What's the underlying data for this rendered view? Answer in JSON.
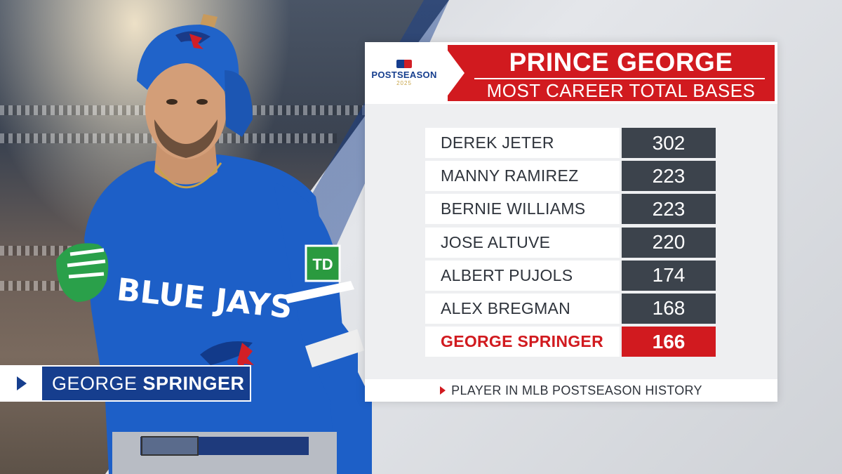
{
  "colors": {
    "accent_red": "#d11a1f",
    "blue": "#163e8e",
    "value_box": "#3c434c"
  },
  "logo": {
    "line1": "POSTSEASON",
    "line2": "2025"
  },
  "header": {
    "title": "PRINCE GEORGE",
    "subtitle": "MOST CAREER TOTAL BASES"
  },
  "player_tag": {
    "first": "GEORGE",
    "last": "SPRINGER"
  },
  "rows": [
    {
      "name": "DEREK JETER",
      "value": "302"
    },
    {
      "name": "MANNY RAMIREZ",
      "value": "223"
    },
    {
      "name": "BERNIE WILLIAMS",
      "value": "223"
    },
    {
      "name": "JOSE ALTUVE",
      "value": "220"
    },
    {
      "name": "ALBERT PUJOLS",
      "value": "174"
    },
    {
      "name": "ALEX BREGMAN",
      "value": "168"
    },
    {
      "name": "GEORGE SPRINGER",
      "value": "166",
      "highlight": true
    }
  ],
  "footer": {
    "text": "PLAYER IN MLB POSTSEASON HISTORY"
  },
  "jersey": {
    "team": "BLUE JAYS",
    "patch": "TD"
  }
}
